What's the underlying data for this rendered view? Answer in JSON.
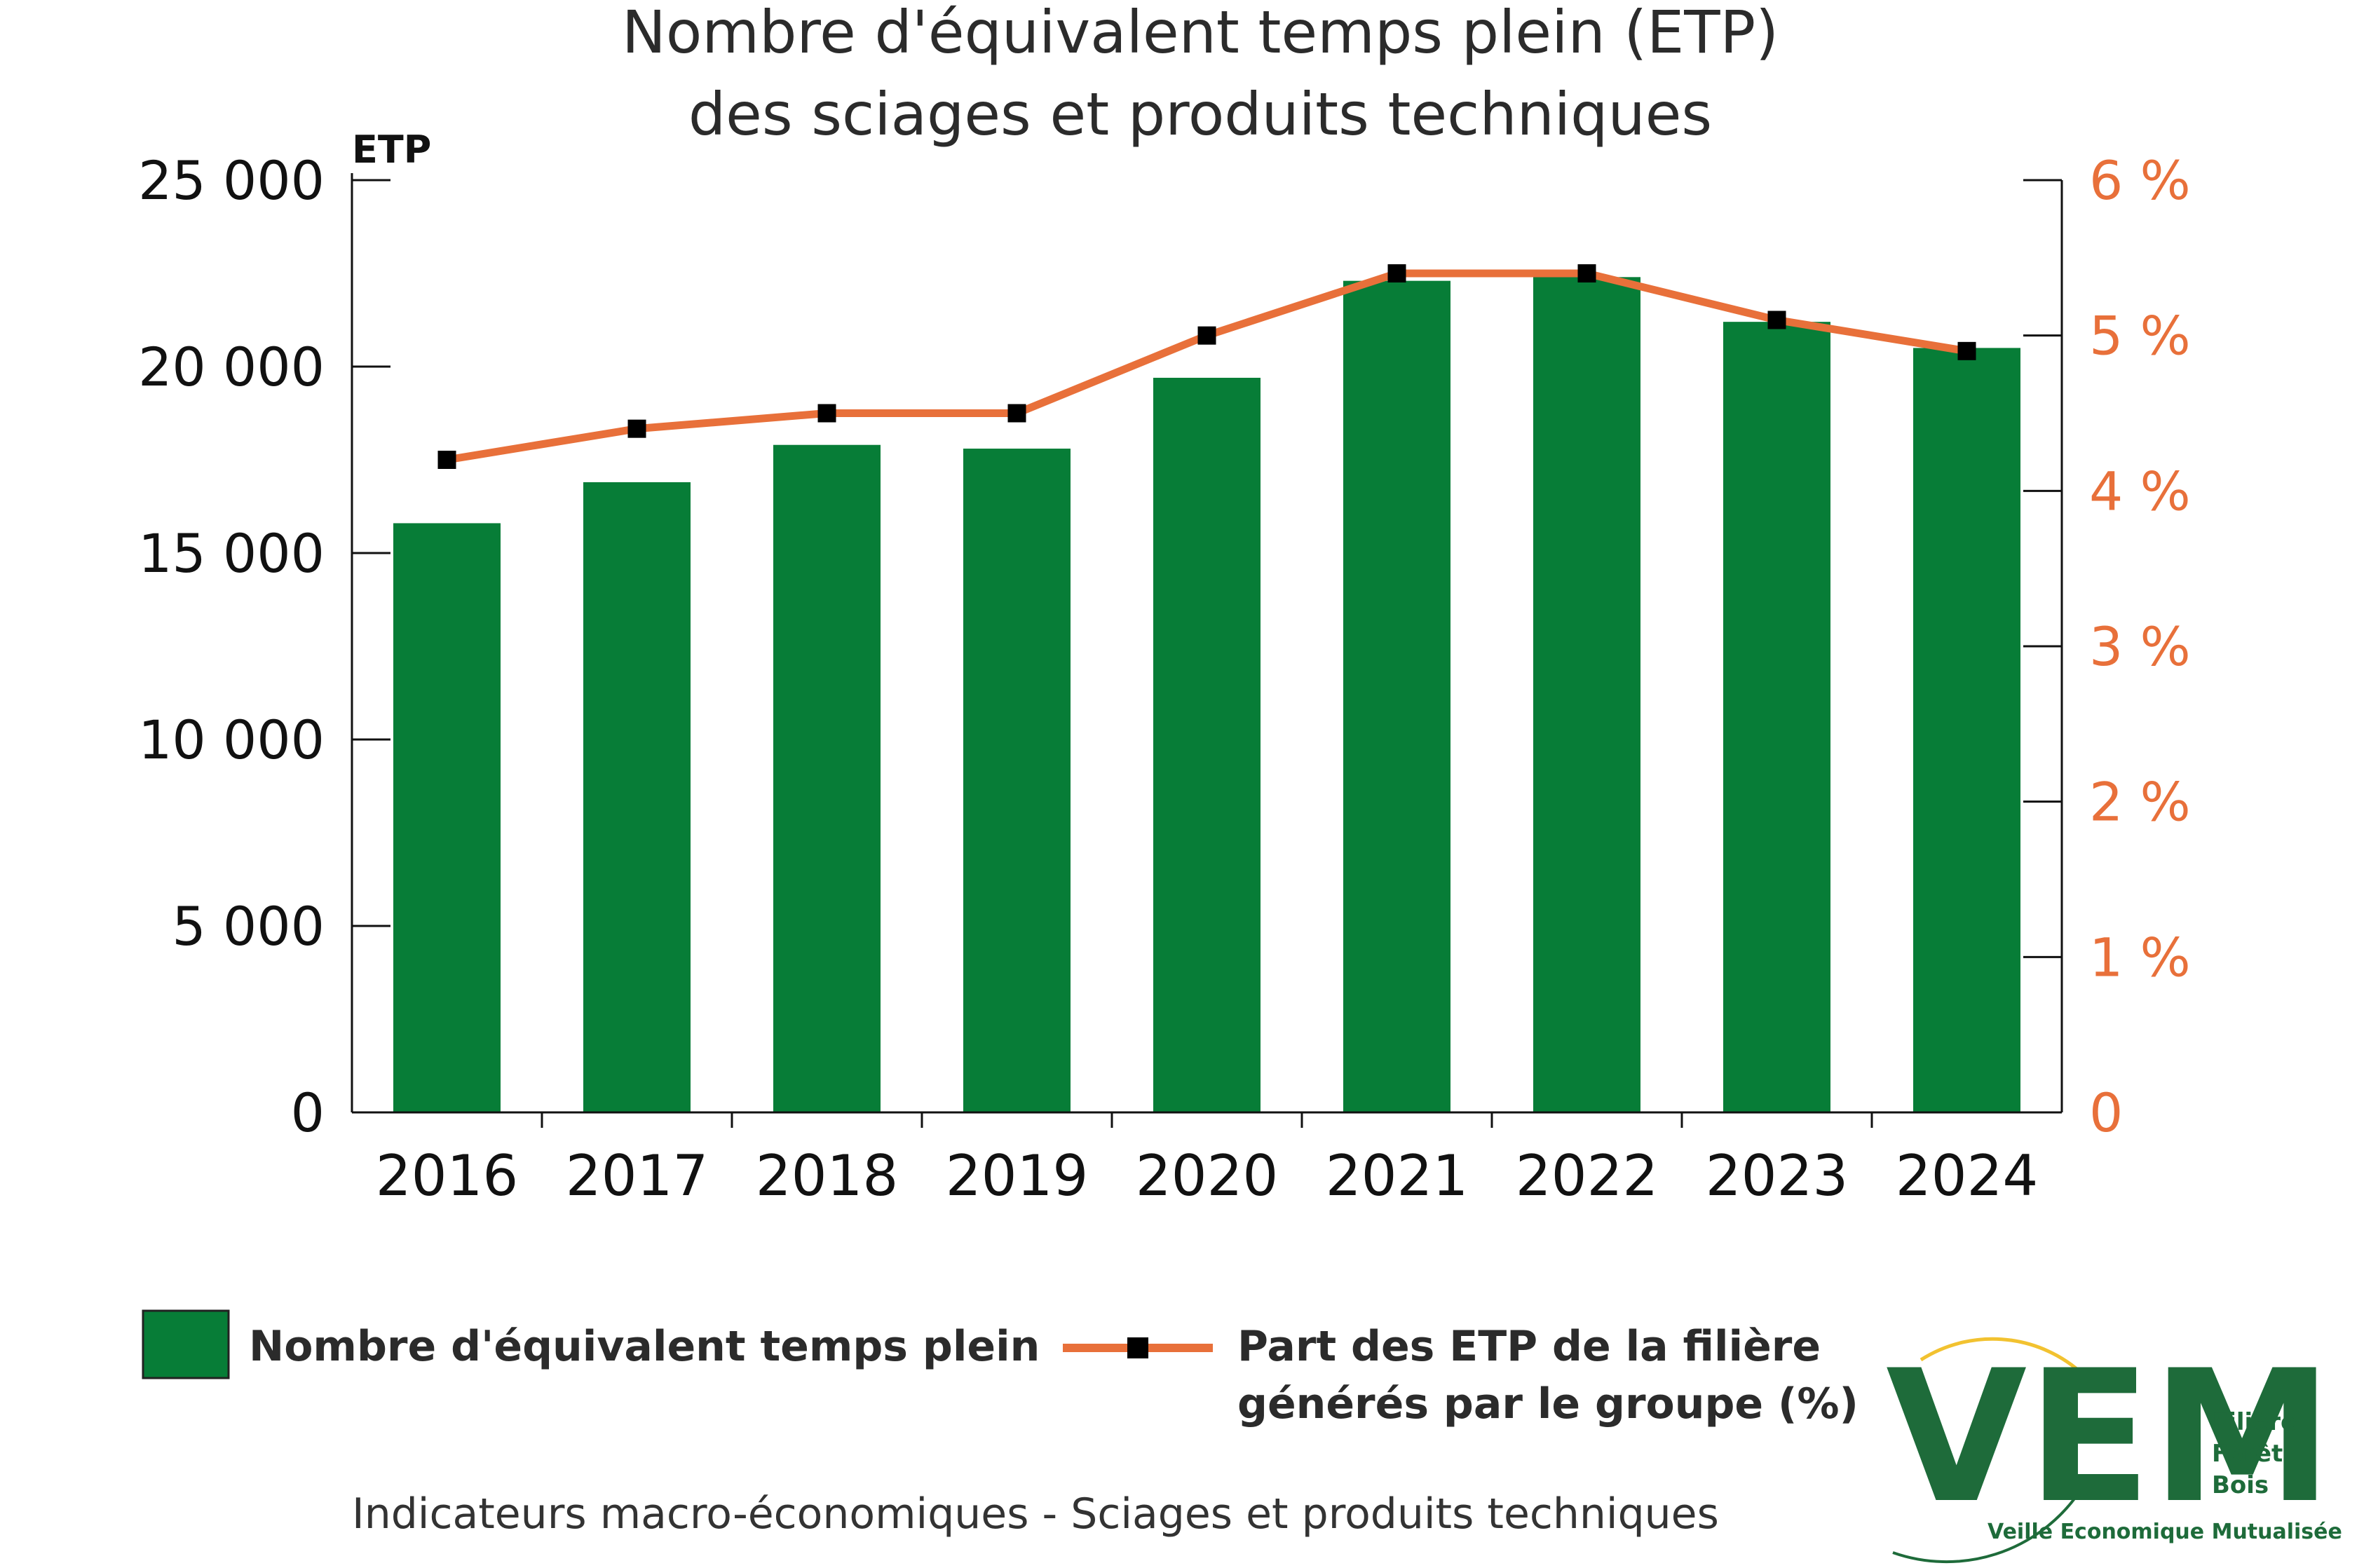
{
  "colors": {
    "bar": "#077d37",
    "line": "#e8703a",
    "marker": "#000000",
    "axis": "#111111",
    "right_axis_text": "#e8703a",
    "logo_green": "#1e6b3a",
    "logo_yellow": "#f2c230"
  },
  "chart_data": {
    "type": "bar",
    "title": [
      "Nombre d'équivalent temps plein (ETP)",
      "des sciages et produits techniques"
    ],
    "ylabel": "ETP",
    "categories": [
      "2016",
      "2017",
      "2018",
      "2019",
      "2020",
      "2021",
      "2022",
      "2023",
      "2024"
    ],
    "series": [
      {
        "name": "Nombre d'équivalent temps plein",
        "type": "bar",
        "axis": "left",
        "values": [
          15800,
          16900,
          17900,
          17800,
          19700,
          22300,
          22400,
          21200,
          20500
        ]
      },
      {
        "name_lines": [
          "Part des ETP de la filière",
          "générés par le groupe (%)"
        ],
        "type": "line",
        "axis": "right",
        "values": [
          4.2,
          4.4,
          4.5,
          4.5,
          5.0,
          5.4,
          5.4,
          5.1,
          4.9
        ]
      }
    ],
    "ylim": [
      0,
      25000
    ],
    "yticks": [
      0,
      5000,
      10000,
      15000,
      20000,
      25000
    ],
    "ytick_labels": [
      "0",
      "5 000",
      "10 000",
      "15 000",
      "20 000",
      "25 000"
    ],
    "y2lim": [
      0,
      6
    ],
    "y2ticks": [
      0,
      1,
      2,
      3,
      4,
      5,
      6
    ],
    "y2tick_labels": [
      "0",
      "1 %",
      "2 %",
      "3 %",
      "4 %",
      "5 %",
      "6 %"
    ],
    "grid": false,
    "legend_position": "bottom"
  },
  "footer": "Indicateurs macro-économiques - Sciages et produits techniques",
  "logo": {
    "mark": "VEM",
    "words": [
      "Filière",
      "Forêt",
      "Bois"
    ],
    "tagline": "Veille Economique Mutualisée"
  }
}
